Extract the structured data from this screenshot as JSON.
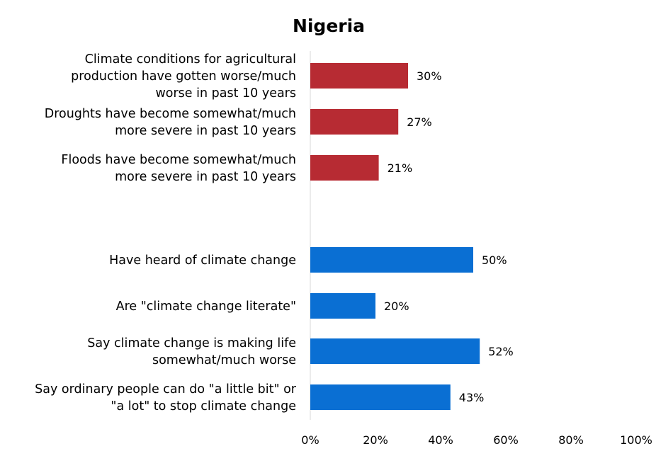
{
  "chart_data": {
    "type": "bar",
    "orientation": "horizontal",
    "title": "Nigeria",
    "categories": [
      [
        "Climate conditions for agricultural",
        "production have gotten worse/much",
        "worse in past 10 years"
      ],
      [
        "Droughts have become somewhat/much",
        "more severe in past 10 years"
      ],
      [
        "Floods have become somewhat/much",
        "more severe in past 10 years"
      ],
      [
        "Have heard of climate change"
      ],
      [
        "Are \"climate change literate\""
      ],
      [
        "Say climate change is making life",
        "somewhat/much worse"
      ],
      [
        "Say ordinary people can do \"a little bit\" or",
        "\"a lot\" to stop climate change"
      ]
    ],
    "values": [
      30,
      27,
      21,
      50,
      20,
      52,
      43
    ],
    "value_labels": [
      "30%",
      "27%",
      "21%",
      "50%",
      "20%",
      "52%",
      "43%"
    ],
    "colors": [
      "#b72b33",
      "#b72b33",
      "#b72b33",
      "#0a6fd3",
      "#0a6fd3",
      "#0a6fd3",
      "#0a6fd3"
    ],
    "xlim": [
      0,
      100
    ],
    "x_ticks": [
      0,
      20,
      40,
      60,
      80,
      100
    ],
    "x_tick_labels": [
      "0%",
      "20%",
      "40%",
      "60%",
      "80%",
      "100%"
    ],
    "grid": false,
    "legend": "none"
  }
}
